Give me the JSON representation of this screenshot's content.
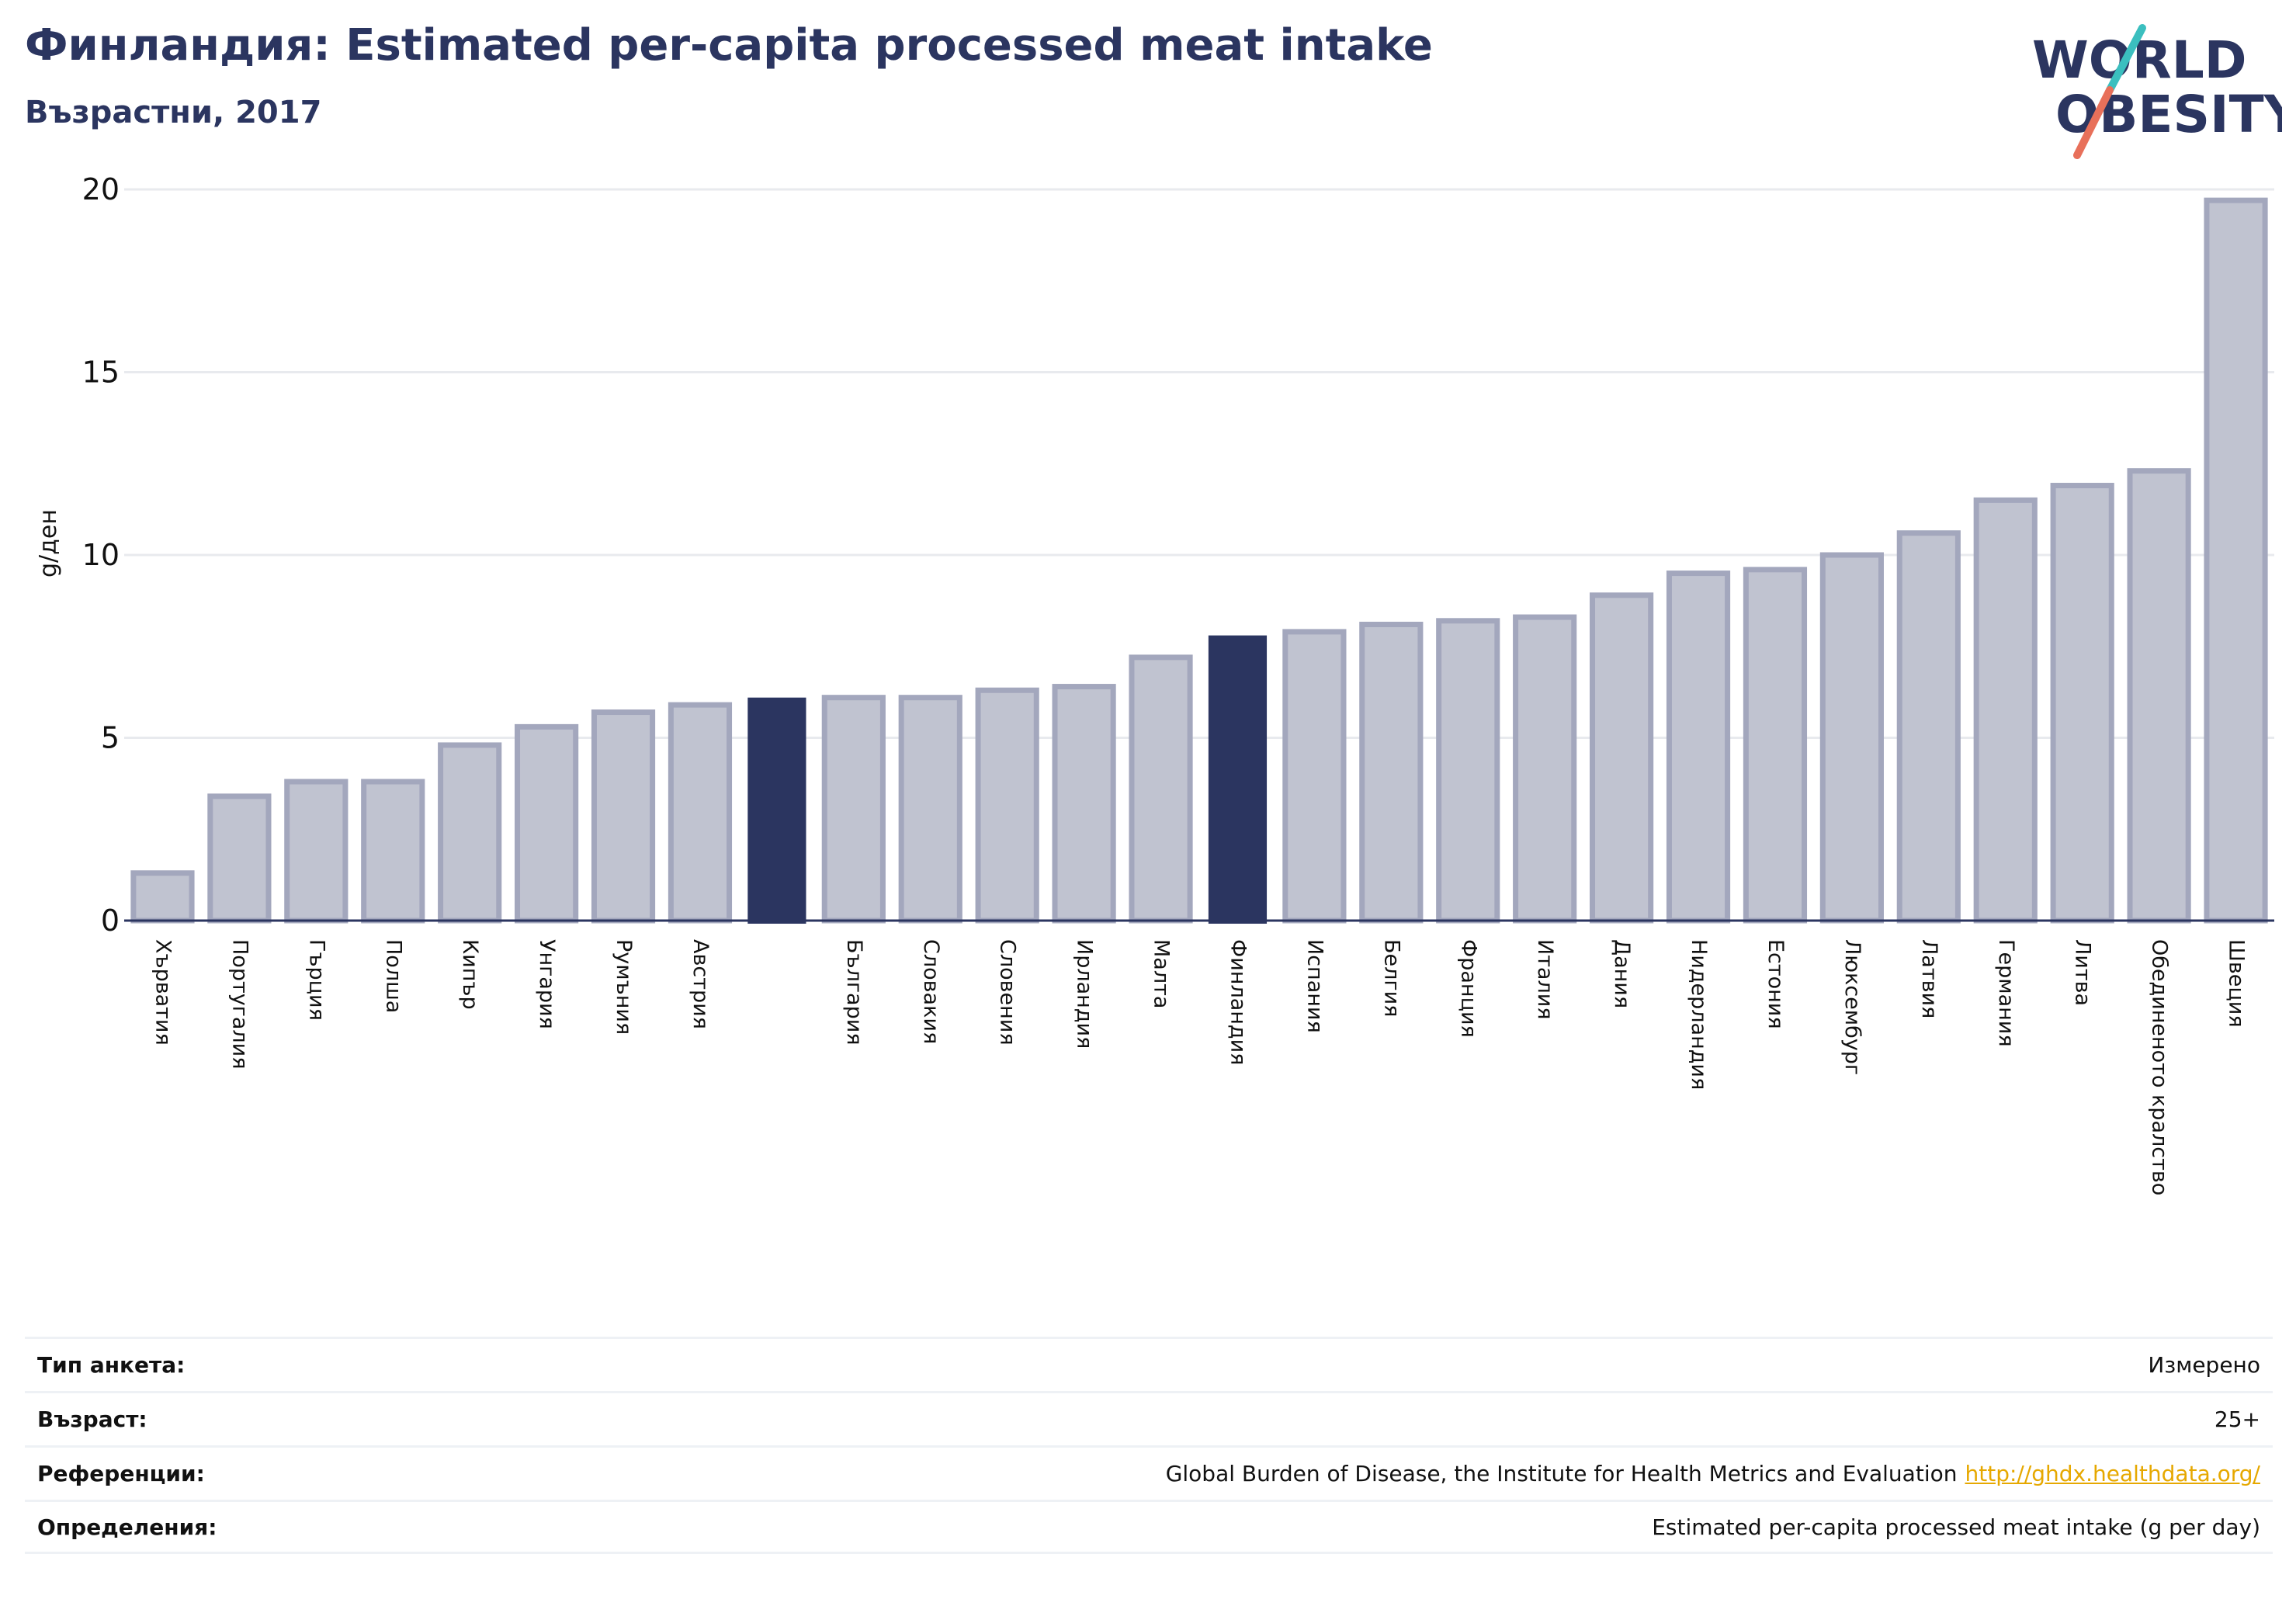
{
  "header": {
    "title": "Финландия: Estimated per-capita processed meat intake",
    "subtitle": "Възрастни, 2017"
  },
  "logo": {
    "line1": "WORLD",
    "line2": "OBESITY",
    "colors": {
      "text": "#2b3560",
      "slash_top": "#3bbfbf",
      "slash_bottom": "#e8705a"
    }
  },
  "colors": {
    "bar_default_fill": "#c0c3d0",
    "bar_default_stroke": "#a3a7bd",
    "bar_highlight": "#2b3560",
    "grid": "#e8eaee",
    "axis": "#2b3560",
    "link": "#e6a800"
  },
  "chart_data": {
    "type": "bar",
    "ylabel": "g/ден",
    "ylim": [
      0,
      20
    ],
    "yticks": [
      0,
      5,
      10,
      15,
      20
    ],
    "grid": true,
    "categories": [
      "Хърватия",
      "Португалия",
      "Гърция",
      "Полша",
      "Кипър",
      "Унгария",
      "Румъния",
      "Австрия",
      "",
      "България",
      "Словакия",
      "Словения",
      "Ирландия",
      "Малта",
      "Финландия",
      "Испания",
      "Белгия",
      "Франция",
      "Италия",
      "Дания",
      "Нидерландия",
      "Естония",
      "Люксембург",
      "Латвия",
      "Германия",
      "Литва",
      "Обединеното кралство",
      "Швеция"
    ],
    "values": [
      1.3,
      3.4,
      3.8,
      3.8,
      4.8,
      5.3,
      5.7,
      5.9,
      6.1,
      6.1,
      6.1,
      6.3,
      6.4,
      7.2,
      7.8,
      7.9,
      8.1,
      8.2,
      8.3,
      8.9,
      9.5,
      9.6,
      10.0,
      10.6,
      11.5,
      11.9,
      12.3,
      19.7
    ],
    "highlighted": [
      8,
      14
    ]
  },
  "info": {
    "rows": [
      {
        "label": "Тип анкета:",
        "value": "Измерено"
      },
      {
        "label": "Възраст:",
        "value": "25+"
      },
      {
        "label": "Референции:",
        "value": "Global Burden of Disease, the Institute for Health Metrics and Evaluation",
        "link": "http://ghdx.healthdata.org/"
      },
      {
        "label": "Определения:",
        "value": "Estimated per-capita processed meat intake (g per day)"
      }
    ]
  }
}
